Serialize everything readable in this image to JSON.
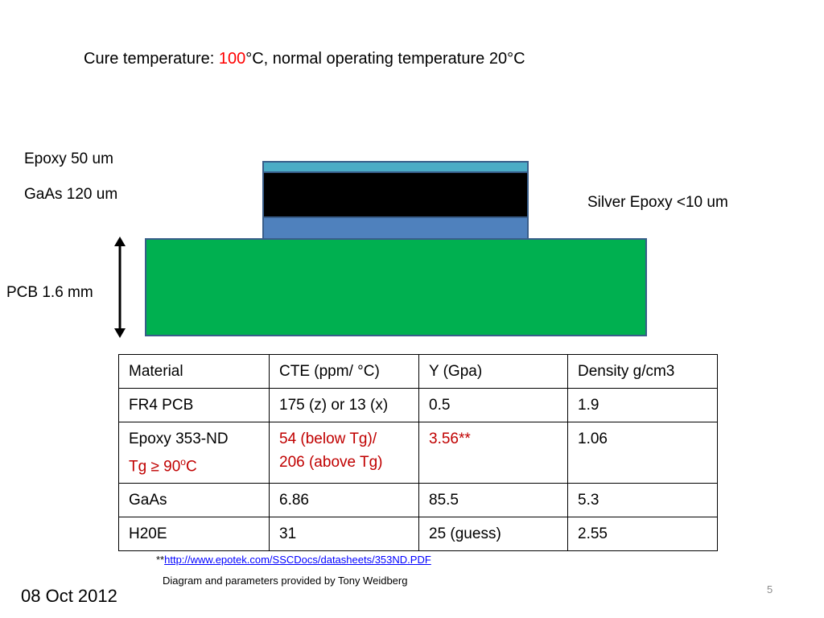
{
  "slide": {
    "title_prefix": "Cure temperature: ",
    "title_value": "100",
    "title_suffix": "°C, normal operating temperature 20°C",
    "label_epoxy": "Epoxy 50 um",
    "label_gaas": "GaAs 120 um",
    "label_silver": "Silver Epoxy <10 um",
    "label_pcb": "PCB 1.6 mm",
    "colors": {
      "epoxy_layer": "#4bacc6",
      "gaas_layer": "#000000",
      "silver_layer": "#4f81bd",
      "pcb_layer": "#00b050",
      "highlight_red": "#ff0000",
      "table_red": "#c00000"
    }
  },
  "table": {
    "headers": [
      "Material",
      "CTE (ppm/ °C)",
      "Y (Gpa)",
      "Density g/cm3"
    ],
    "rows": [
      {
        "material": "FR4 PCB",
        "cte": "175 (z) or 13 (x)",
        "y": "0.5",
        "density": "1.9"
      },
      {
        "material": "Epoxy 353-ND",
        "note_pre": "Tg ≥ 90",
        "note_sup": "o",
        "note_post": "C",
        "cte_line1": "54 (below Tg)/",
        "cte_line2": "206 (above Tg)",
        "y": "3.56**",
        "density": "1.06"
      },
      {
        "material": "GaAs",
        "cte": "6.86",
        "y": "85.5",
        "density": "5.3"
      },
      {
        "material": "H20E",
        "cte": "31",
        "y": "25 (guess)",
        "density": "2.55"
      }
    ]
  },
  "footer": {
    "footnote_prefix": "**",
    "link": "http://www.epotek.com/SSCDocs/datasheets/353ND.PDF",
    "credit": "Diagram  and parameters provided by Tony Weidberg",
    "date": "08 Oct 2012",
    "page_number": "5"
  }
}
